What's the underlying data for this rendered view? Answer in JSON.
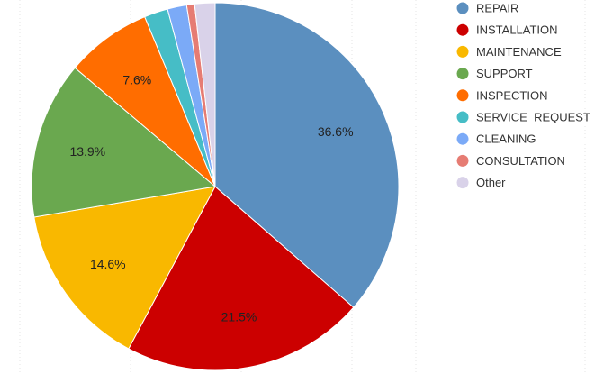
{
  "chart_data": {
    "type": "pie",
    "title": "",
    "categories": [
      "REPAIR",
      "INSTALLATION",
      "MAINTENANCE",
      "SUPPORT",
      "INSPECTION",
      "SERVICE_REQUEST",
      "CLEANING",
      "CONSULTATION",
      "Other"
    ],
    "values": [
      36.6,
      21.5,
      14.6,
      13.9,
      7.6,
      2.1,
      1.7,
      0.7,
      1.8
    ],
    "value_labels": [
      "36.6%",
      "21.5%",
      "14.6%",
      "13.9%",
      "7.6%",
      "",
      "",
      "",
      ""
    ],
    "colors": [
      "#5b8fbf",
      "#cc0000",
      "#f9b800",
      "#6aa84f",
      "#ff6d00",
      "#46bdc6",
      "#7baaf7",
      "#e67c73",
      "#d9d2e9"
    ],
    "legend_position": "right",
    "start_angle_deg": 0,
    "direction": "clockwise"
  }
}
